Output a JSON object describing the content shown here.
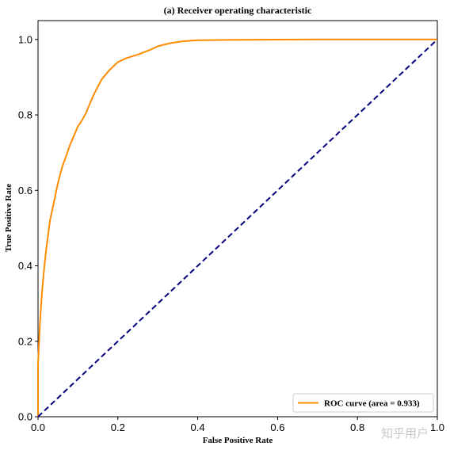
{
  "chart_data": {
    "type": "line",
    "title": "(a) Receiver operating characteristic",
    "xlabel": "False Positive Rate",
    "ylabel": "True Positive Rate",
    "xlim": [
      0.0,
      1.0
    ],
    "ylim": [
      0.0,
      1.05
    ],
    "grid": false,
    "legend_position": "lower-right",
    "x_ticks": [
      "0.0",
      "0.2",
      "0.4",
      "0.6",
      "0.8",
      "1.0"
    ],
    "y_ticks": [
      "0.0",
      "0.2",
      "0.4",
      "0.6",
      "0.8",
      "1.0"
    ],
    "series": [
      {
        "name": "ROC curve (area = 0.933)",
        "color": "#ff8c00",
        "style": "solid",
        "x": [
          0.0,
          0.0,
          0.005,
          0.01,
          0.015,
          0.02,
          0.025,
          0.03,
          0.04,
          0.05,
          0.06,
          0.07,
          0.08,
          0.09,
          0.1,
          0.11,
          0.12,
          0.13,
          0.14,
          0.15,
          0.16,
          0.18,
          0.2,
          0.22,
          0.25,
          0.28,
          0.3,
          0.33,
          0.36,
          0.4,
          0.5,
          0.6,
          0.7,
          0.8,
          0.9,
          1.0
        ],
        "y": [
          0.0,
          0.14,
          0.25,
          0.33,
          0.39,
          0.44,
          0.48,
          0.52,
          0.57,
          0.62,
          0.66,
          0.69,
          0.72,
          0.745,
          0.77,
          0.785,
          0.805,
          0.83,
          0.855,
          0.875,
          0.895,
          0.92,
          0.94,
          0.95,
          0.96,
          0.972,
          0.982,
          0.99,
          0.995,
          0.998,
          0.999,
          0.9995,
          1.0,
          1.0,
          1.0,
          1.0
        ]
      },
      {
        "color": "#000080",
        "style": "dashed",
        "x": [
          0.0,
          1.0
        ],
        "y": [
          0.0,
          1.0
        ]
      }
    ]
  },
  "watermark": "知乎用户"
}
